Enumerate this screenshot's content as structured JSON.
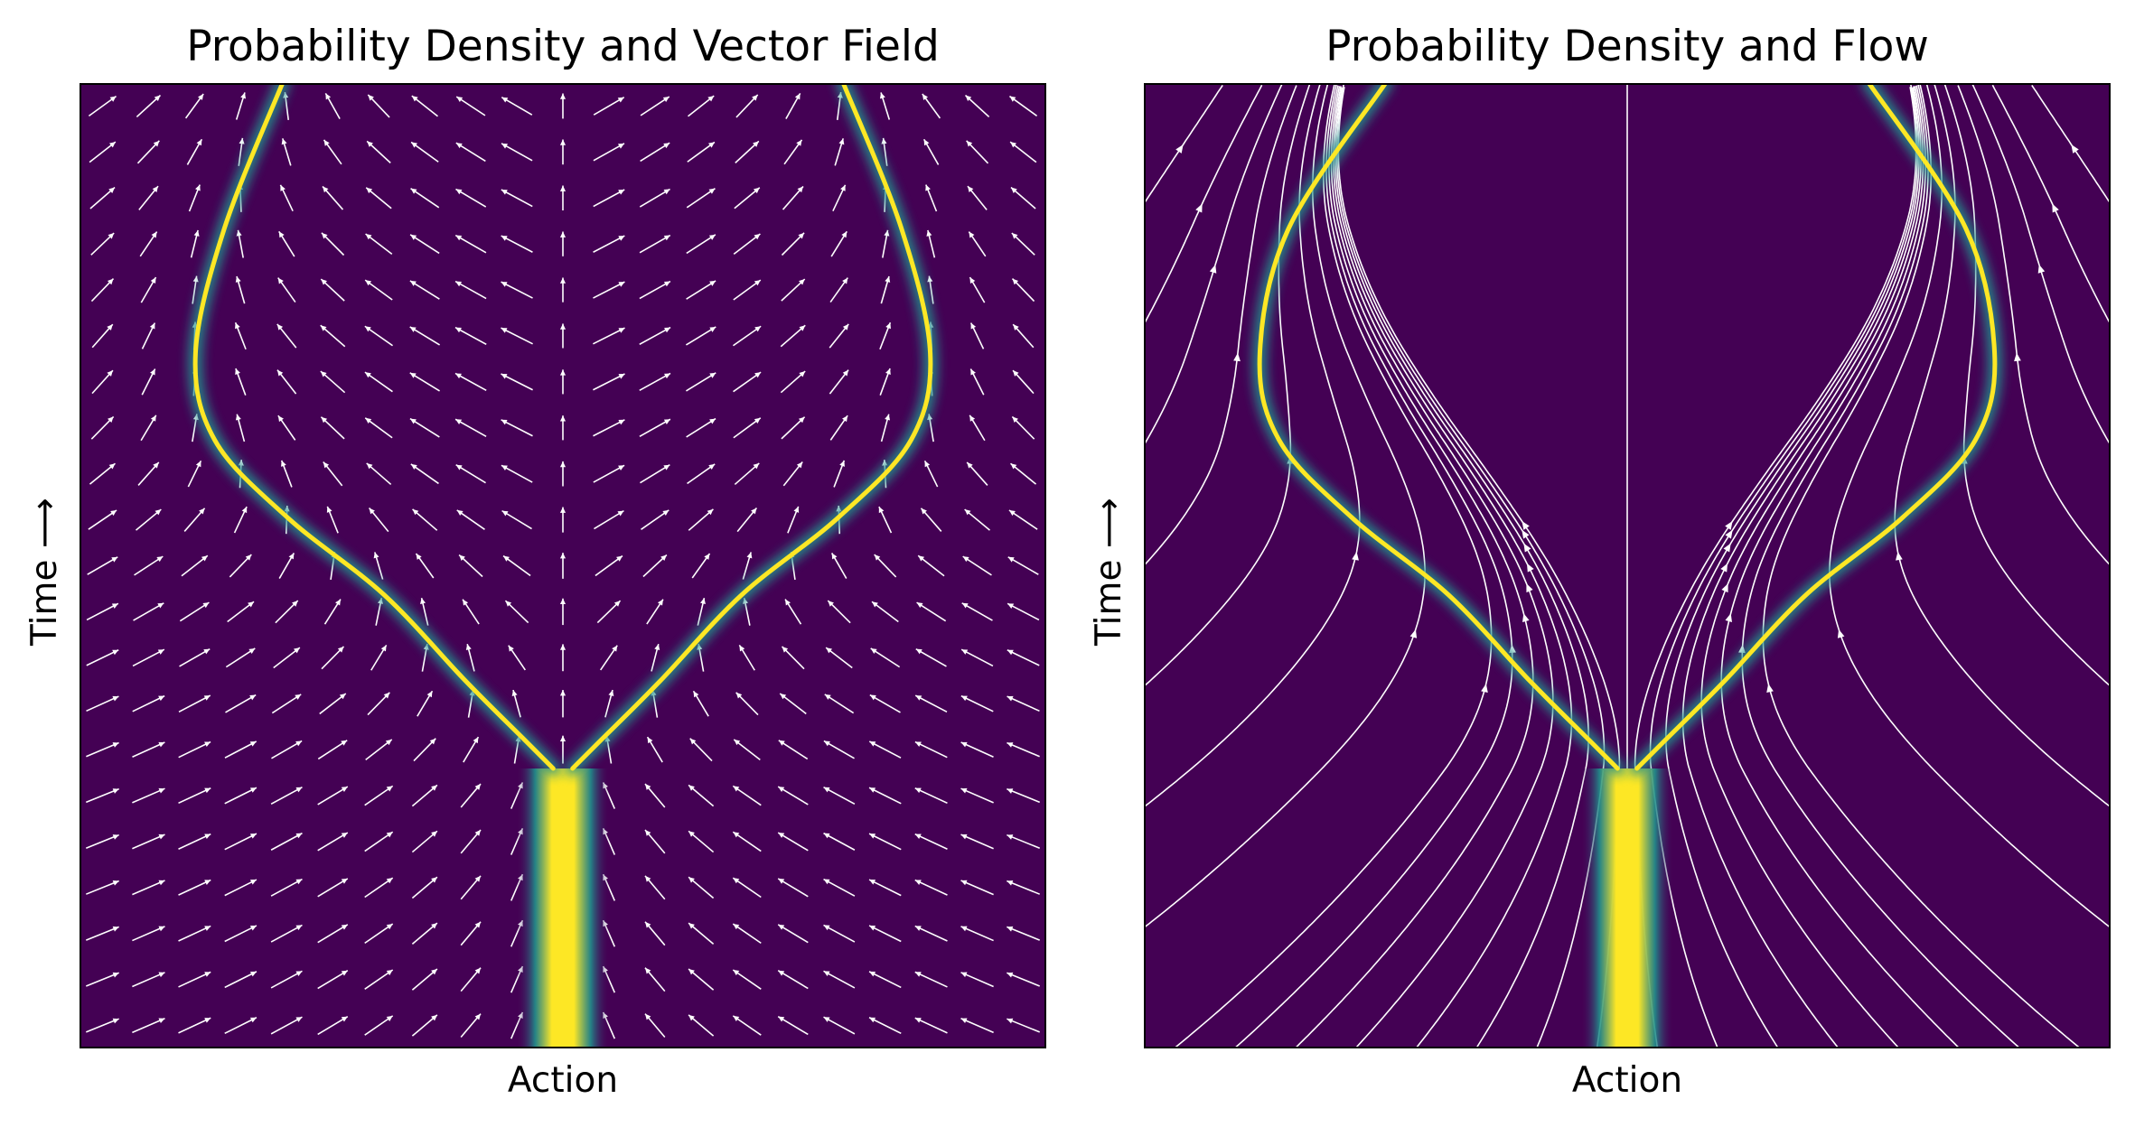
{
  "colors": {
    "background": "#440154",
    "glow_mid": "#21918c",
    "glow_core": "#fde725",
    "arrows": "#ffffff",
    "frame": "#000000"
  },
  "chart_data": [
    {
      "type": "heatmap",
      "variant": "density-with-quiver",
      "title": "Probability Density and Vector Field",
      "xlabel": "Action",
      "ylabel": "Time ⟶",
      "xlim": [
        -1,
        1
      ],
      "ylim": [
        0,
        1
      ],
      "grid": false,
      "ticks": false,
      "density_branches": [
        {
          "name": "",
          "x": [
            -0.02,
            -0.08,
            -0.2,
            -0.37,
            -0.57,
            -0.72,
            -0.76,
            -0.7,
            -0.58
          ],
          "y": [
            0.29,
            0.32,
            0.38,
            0.47,
            0.55,
            0.63,
            0.72,
            0.85,
            1.0
          ]
        },
        {
          "name": "",
          "x": [
            0.02,
            0.08,
            0.2,
            0.37,
            0.57,
            0.72,
            0.76,
            0.7,
            0.58
          ],
          "y": [
            0.29,
            0.32,
            0.38,
            0.47,
            0.55,
            0.63,
            0.72,
            0.85,
            1.0
          ]
        }
      ],
      "stem": {
        "x": 0.0,
        "y_from": 0.0,
        "y_to": 0.29,
        "width": 0.06
      }
    },
    {
      "type": "heatmap",
      "variant": "density-with-streamlines",
      "title": "Probability Density and Flow",
      "xlabel": "Action",
      "ylabel": "Time ⟶",
      "xlim": [
        -1,
        1
      ],
      "ylim": [
        0,
        1
      ],
      "grid": false,
      "ticks": false,
      "density_branches": [
        {
          "name": "",
          "x": [
            -0.02,
            -0.08,
            -0.2,
            -0.37,
            -0.57,
            -0.72,
            -0.76,
            -0.7,
            -0.5
          ],
          "y": [
            0.29,
            0.32,
            0.38,
            0.47,
            0.55,
            0.63,
            0.72,
            0.85,
            1.0
          ]
        },
        {
          "name": "",
          "x": [
            0.02,
            0.08,
            0.2,
            0.37,
            0.57,
            0.72,
            0.76,
            0.7,
            0.5
          ],
          "y": [
            0.29,
            0.32,
            0.38,
            0.47,
            0.55,
            0.63,
            0.72,
            0.85,
            1.0
          ]
        }
      ],
      "stem": {
        "x": 0.0,
        "y_from": 0.0,
        "y_to": 0.29,
        "width": 0.06
      }
    }
  ]
}
